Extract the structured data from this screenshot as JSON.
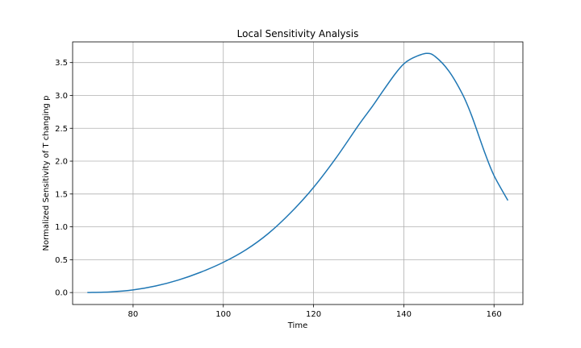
{
  "chart_data": {
    "type": "line",
    "title": "Local Sensitivity Analysis",
    "xlabel": "Time",
    "ylabel": "Normalized Sensitivity of T changing p",
    "xlim": [
      66.6,
      166.4
    ],
    "ylim": [
      -0.182,
      3.815
    ],
    "xticks": [
      80,
      100,
      120,
      140,
      160
    ],
    "yticks": [
      0.0,
      0.5,
      1.0,
      1.5,
      2.0,
      2.5,
      3.0,
      3.5
    ],
    "xtick_labels": [
      "80",
      "100",
      "120",
      "140",
      "160"
    ],
    "ytick_labels": [
      "0.0",
      "0.5",
      "1.0",
      "1.5",
      "2.0",
      "2.5",
      "3.0",
      "3.5"
    ],
    "grid": true,
    "series": [
      {
        "color": "#1f77b4",
        "x": [
          70,
          75,
          80,
          85,
          90,
          95,
          100,
          105,
          110,
          115,
          120,
          125,
          130,
          133,
          135,
          138,
          140,
          142,
          145,
          147,
          150,
          153,
          155,
          158,
          160,
          163
        ],
        "y": [
          0.0,
          0.01,
          0.04,
          0.1,
          0.19,
          0.31,
          0.46,
          0.65,
          0.9,
          1.22,
          1.6,
          2.05,
          2.55,
          2.83,
          3.03,
          3.32,
          3.48,
          3.57,
          3.64,
          3.59,
          3.37,
          3.02,
          2.7,
          2.12,
          1.78,
          1.41
        ]
      }
    ]
  }
}
